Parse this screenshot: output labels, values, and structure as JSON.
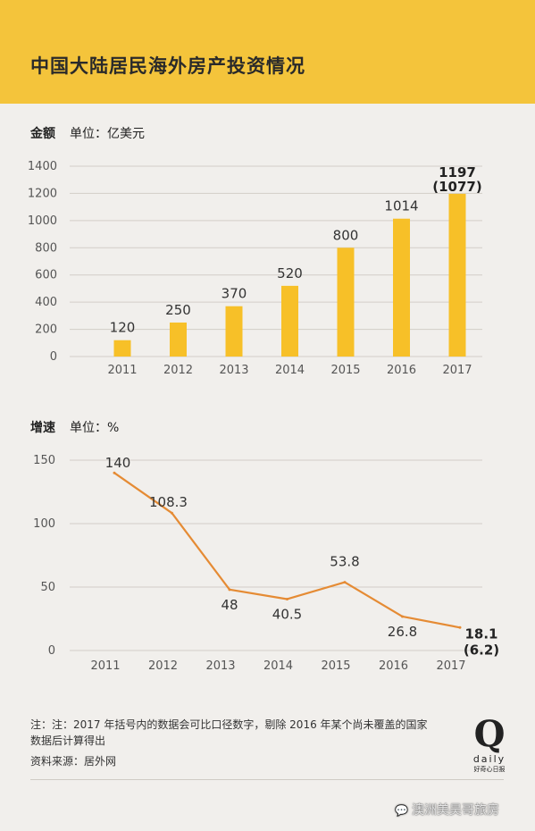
{
  "title": "中国大陆居民海外房产投资情况",
  "bar_section": {
    "label": "金额",
    "unit": "单位：亿美元"
  },
  "line_section": {
    "label": "增速",
    "unit": "单位：%"
  },
  "colors": {
    "header": "#f4c43b",
    "bar": "#f7c028",
    "line": "#e58b34",
    "grid": "#d2cec8"
  },
  "chart_data": [
    {
      "type": "bar",
      "categories": [
        "2011",
        "2012",
        "2013",
        "2014",
        "2015",
        "2016",
        "2017"
      ],
      "values": [
        120,
        250,
        370,
        520,
        800,
        1014,
        1197
      ],
      "value_labels": [
        "120",
        "250",
        "370",
        "520",
        "800",
        "1014",
        "1197"
      ],
      "extra_label": {
        "category": "2017",
        "text": "(1077)"
      },
      "ylim": [
        0,
        1400
      ],
      "yticks": [
        0,
        200,
        400,
        600,
        800,
        1000,
        1200,
        1400
      ],
      "grid": true
    },
    {
      "type": "line",
      "categories": [
        "2011",
        "2012",
        "2013",
        "2014",
        "2015",
        "2016",
        "2017"
      ],
      "values": [
        140,
        108.3,
        48,
        40.5,
        53.8,
        26.8,
        18.1
      ],
      "value_labels": [
        "140",
        "108.3",
        "48",
        "40.5",
        "53.8",
        "26.8",
        "18.1"
      ],
      "extra_label": {
        "category": "2017",
        "text": "(6.2)"
      },
      "ylim": [
        0,
        150
      ],
      "yticks": [
        0,
        50,
        100,
        150
      ],
      "grid": true
    }
  ],
  "notes": {
    "line1": "注：注：2017 年括号内的数据会可比口径数字，剔除 2016 年某个尚未覆盖的国家",
    "line2": "数据后计算得出",
    "source": "资料来源：居外网"
  },
  "logo": {
    "mark": "Q",
    "word": "daily",
    "cn": "好奇心日报"
  },
  "watermark": "澳洲美昊哥旅房"
}
